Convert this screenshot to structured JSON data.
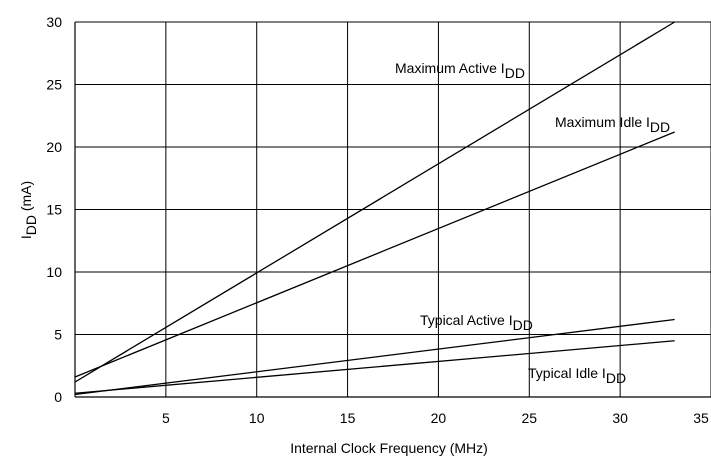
{
  "chart_data": {
    "type": "line",
    "xlabel": "Internal Clock Frequency (MHz)",
    "ylabel": {
      "main": "I",
      "sub": "DD",
      "suffix": " (mA)"
    },
    "xlim": [
      0,
      35
    ],
    "ylim": [
      0,
      30
    ],
    "xticks": [
      5,
      10,
      15,
      20,
      25,
      30,
      35
    ],
    "yticks": [
      0,
      5,
      10,
      15,
      20,
      25,
      30
    ],
    "grid": true,
    "series": [
      {
        "name": "Maximum Active I",
        "name_sub": "DD",
        "x": [
          0,
          33
        ],
        "y": [
          1.2,
          30
        ]
      },
      {
        "name": "Maximum Idle I",
        "name_sub": "DD",
        "x": [
          0,
          33
        ],
        "y": [
          1.6,
          21.2
        ]
      },
      {
        "name": "Typical Active I",
        "name_sub": "DD",
        "x": [
          0,
          33
        ],
        "y": [
          0.2,
          6.2
        ]
      },
      {
        "name": "Typical Idle I",
        "name_sub": "DD",
        "x": [
          0,
          33
        ],
        "y": [
          0.3,
          4.5
        ]
      }
    ]
  }
}
